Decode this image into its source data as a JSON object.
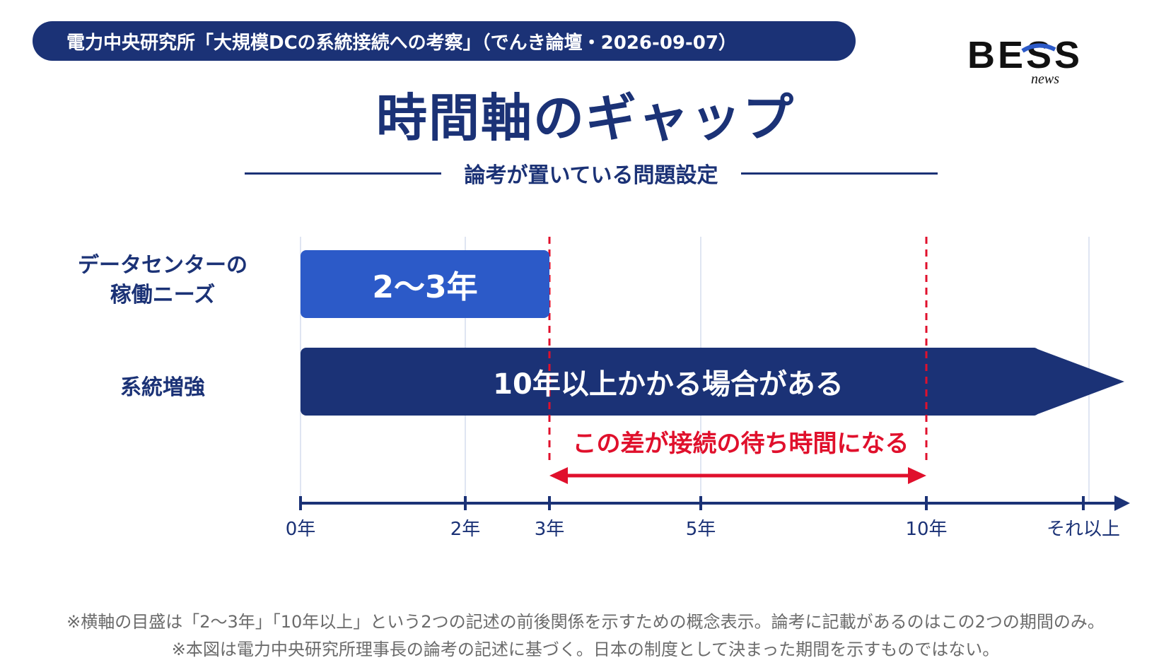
{
  "header": {
    "source": "電力中央研究所「大規模DCの系統接続への考察」（でんき論壇・2026-09-07）",
    "logo_text": "BESS",
    "logo_sub": "news"
  },
  "title": "時間軸のギャップ",
  "subtitle": "論考が置いている問題設定",
  "colors": {
    "navy": "#1b3276",
    "blue": "#2c5ac8",
    "red": "#e0102c",
    "grid": "#dfe5f2"
  },
  "chart_data": {
    "type": "timeline",
    "rows": [
      {
        "label_line1": "データセンターの",
        "label_line2": "稼働ニーズ",
        "bar_text": "2〜3年",
        "start": 0,
        "end": 3
      },
      {
        "label_line1": "系統増強",
        "label_line2": "",
        "bar_text": "10年以上かかる場合がある",
        "start": 0,
        "end": "10+"
      }
    ],
    "axis_ticks": [
      "0年",
      "2年",
      "3年",
      "5年",
      "10年",
      "それ以上"
    ],
    "gap": {
      "from": 3,
      "to": 10,
      "label": "この差が接続の待ち時間になる"
    }
  },
  "notes": [
    "※横軸の目盛は「2〜3年」「10年以上」という2つの記述の前後関係を示すための概念表示。論考に記載があるのはこの2つの期間のみ。",
    "※本図は電力中央研究所理事長の論考の記述に基づく。日本の制度として決まった期間を示すものではない。"
  ]
}
